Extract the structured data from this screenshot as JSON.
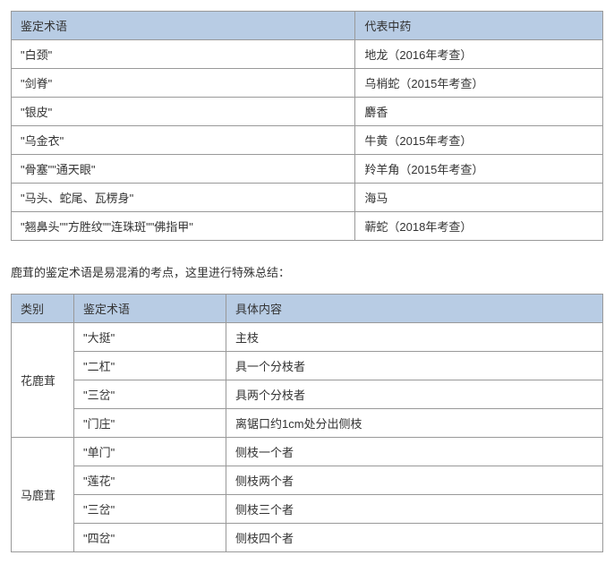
{
  "table1": {
    "headers": [
      "鉴定术语",
      "代表中药"
    ],
    "rows": [
      [
        "\"白颈\"",
        "地龙（2016年考查）"
      ],
      [
        "\"剑脊\"",
        "乌梢蛇（2015年考查）"
      ],
      [
        "\"银皮\"",
        "麝香"
      ],
      [
        "\"乌金衣\"",
        "牛黄（2015年考查）"
      ],
      [
        "\"骨塞\"\"通天眼\"",
        "羚羊角（2015年考查）"
      ],
      [
        "\"马头、蛇尾、瓦楞身\"",
        "海马"
      ],
      [
        "\"翘鼻头\"\"方胜纹\"\"连珠斑\"\"佛指甲\"",
        "蕲蛇（2018年考查）"
      ]
    ],
    "col_widths": [
      "50%",
      "50%"
    ]
  },
  "intro_text": "鹿茸的鉴定术语是易混淆的考点，这里进行特殊总结：",
  "table2": {
    "headers": [
      "类别",
      "鉴定术语",
      "具体内容"
    ],
    "groups": [
      {
        "category": "花鹿茸",
        "rows": [
          [
            "\"大挺\"",
            "主枝"
          ],
          [
            "\"二杠\"",
            "具一个分枝者"
          ],
          [
            "\"三岔\"",
            "具两个分枝者"
          ],
          [
            "\"门庄\"",
            "离锯口约1cm处分出侧枝"
          ]
        ]
      },
      {
        "category": "马鹿茸",
        "rows": [
          [
            "\"单门\"",
            "侧枝一个者"
          ],
          [
            "\"莲花\"",
            "侧枝两个者"
          ],
          [
            "\"三岔\"",
            "侧枝三个者"
          ],
          [
            "\"四岔\"",
            "侧枝四个者"
          ]
        ]
      }
    ]
  },
  "colors": {
    "header_bg": "#b8cce4",
    "border": "#999999",
    "text": "#333333",
    "background": "#ffffff"
  },
  "typography": {
    "font_family": "Microsoft YaHei",
    "font_size": 13
  }
}
